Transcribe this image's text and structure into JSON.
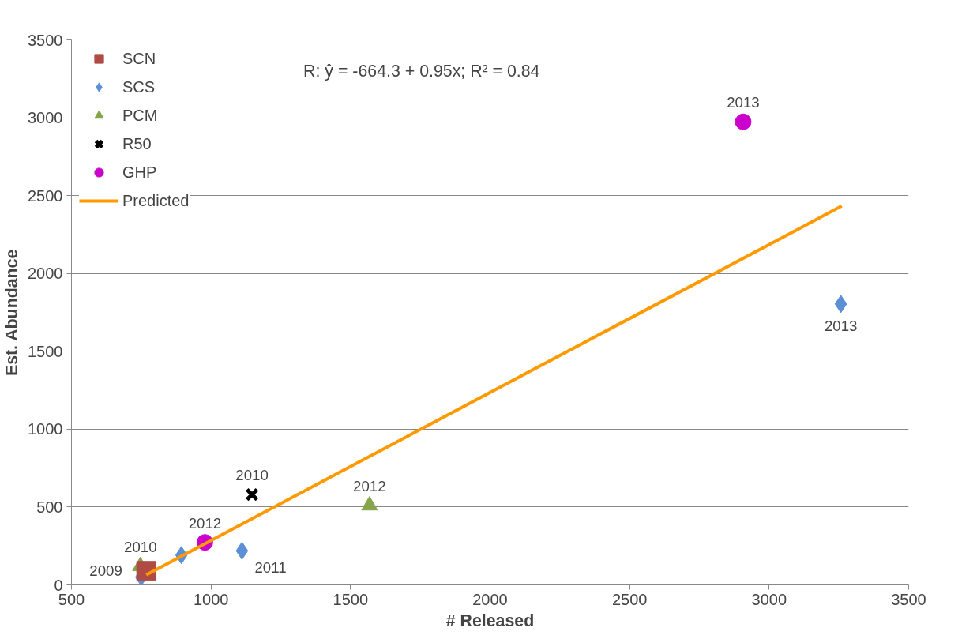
{
  "chart_data": {
    "type": "scatter",
    "xlabel": "# Released",
    "ylabel": "Est. Abundance",
    "annotations": [
      "R: ŷ = -664.3 + 0.95x; R² = 0.84",
      {
        "text": "2009",
        "x": 750,
        "y": 50
      },
      {
        "text": "2011",
        "x": 1111,
        "y": 219
      },
      {
        "text": "2013",
        "x": 3257,
        "y": 1804
      },
      {
        "text": "2010",
        "x": 747,
        "y": 120
      },
      {
        "text": "2012",
        "x": 1568,
        "y": 510
      },
      {
        "text": "2010",
        "x": 1147,
        "y": 580
      },
      {
        "text": "2012",
        "x": 978,
        "y": 273
      },
      {
        "text": "2013",
        "x": 2907,
        "y": 2974
      }
    ],
    "xlim": [
      500,
      3500
    ],
    "xticks": [
      500,
      1000,
      1500,
      2000,
      2500,
      3000,
      3500
    ],
    "ylim": [
      0,
      3500
    ],
    "yticks": [
      0,
      500,
      1000,
      1500,
      2000,
      2500,
      3000,
      3500
    ],
    "grid": "y",
    "legend": "top left",
    "series": [
      {
        "name": "SCN",
        "color": "#b04a45",
        "marker": "square",
        "x": [
          768
        ],
        "values": [
          90
        ]
      },
      {
        "name": "SCS",
        "color": "#5b8fd6",
        "marker": "diamond",
        "x": [
          750,
          894,
          1111,
          3257
        ],
        "values": [
          50,
          191,
          219,
          1804
        ]
      },
      {
        "name": "PCM",
        "color": "#86a44a",
        "marker": "triangle",
        "x": [
          747,
          1568
        ],
        "values": [
          120,
          510
        ]
      },
      {
        "name": "R50",
        "color": "#000000",
        "marker": "cross",
        "x": [
          1147
        ],
        "values": [
          580
        ]
      },
      {
        "name": "GHP",
        "color": "#cc00cc",
        "marker": "circle",
        "x": [
          978,
          2907
        ],
        "values": [
          273,
          2974
        ]
      },
      {
        "name": "Predicted",
        "type": "line",
        "color": "#ff9900",
        "line_style": "solid",
        "x": [
          768,
          3260
        ],
        "values": [
          65,
          2433
        ]
      }
    ]
  }
}
